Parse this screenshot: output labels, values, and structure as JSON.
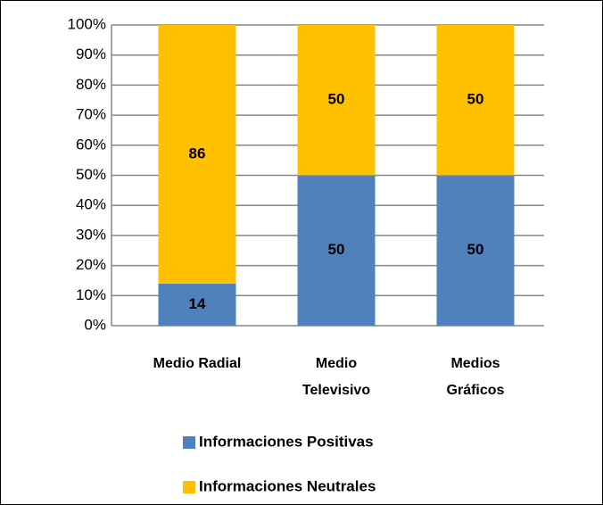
{
  "chart_data": {
    "type": "stacked_bar_100",
    "categories": [
      "Medio Radial",
      "Medio Televisivo",
      "Medios Gráficos"
    ],
    "series": [
      {
        "name": "Informaciones Positivas",
        "color": "#4f81bd",
        "values": [
          14,
          50,
          50
        ]
      },
      {
        "name": "Informaciones Neutrales",
        "color": "#ffc000",
        "values": [
          86,
          50,
          50
        ]
      }
    ],
    "ylim": [
      0,
      100
    ],
    "yticks": [
      {
        "value": 0,
        "label": "0%"
      },
      {
        "value": 10,
        "label": "10%"
      },
      {
        "value": 20,
        "label": "20%"
      },
      {
        "value": 30,
        "label": "30%"
      },
      {
        "value": 40,
        "label": "40%"
      },
      {
        "value": 50,
        "label": "50%"
      },
      {
        "value": 60,
        "label": "60%"
      },
      {
        "value": 70,
        "label": "70%"
      },
      {
        "value": 80,
        "label": "80%"
      },
      {
        "value": 90,
        "label": "90%"
      },
      {
        "value": 100,
        "label": "100%"
      }
    ],
    "grid": true,
    "legend": "bottom"
  }
}
